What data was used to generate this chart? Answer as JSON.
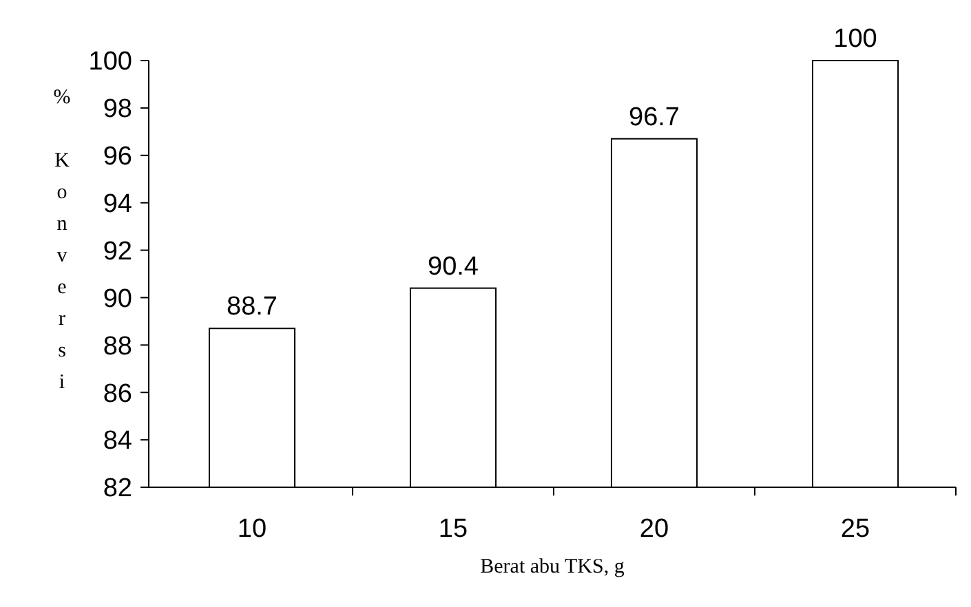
{
  "chart_data": {
    "type": "bar",
    "xlabel": "Berat abu TKS, g",
    "ylabel": "% Konversi",
    "categories": [
      "10",
      "15",
      "20",
      "25"
    ],
    "values": [
      88.7,
      90.4,
      96.7,
      100
    ],
    "color": "#ffffff",
    "ylim": [
      82,
      100
    ],
    "yticks": [
      82,
      84,
      86,
      88,
      90,
      92,
      94,
      96,
      98,
      100
    ],
    "data_labels": true
  }
}
